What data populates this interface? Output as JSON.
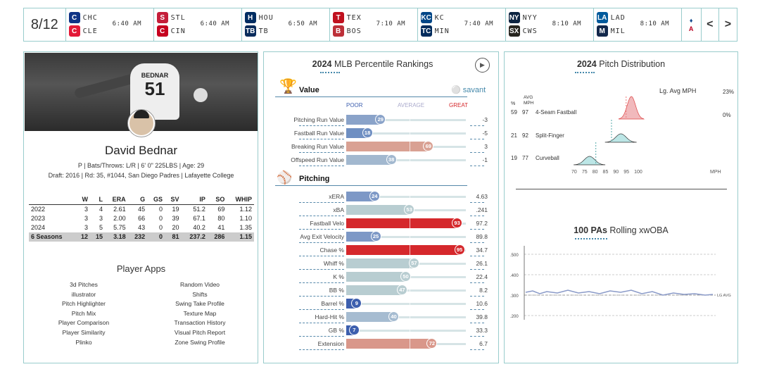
{
  "date": "8/12",
  "games": [
    {
      "away": "CHC",
      "home": "CLE",
      "time": "6:40 AM",
      "c1": "#0e3386",
      "c2": "#e31937",
      "g1": "C",
      "g2": "C"
    },
    {
      "away": "STL",
      "home": "CIN",
      "time": "6:40 AM",
      "c1": "#c41e3a",
      "c2": "#c6011f",
      "g1": "S",
      "g2": "C"
    },
    {
      "away": "HOU",
      "home": "TB",
      "time": "6:50 AM",
      "c1": "#002d62",
      "c2": "#092c5c",
      "g1": "H",
      "g2": "TB"
    },
    {
      "away": "TEX",
      "home": "BOS",
      "time": "7:10 AM",
      "c1": "#c0111f",
      "c2": "#bd3039",
      "g1": "T",
      "g2": "B"
    },
    {
      "away": "KC",
      "home": "MIN",
      "time": "7:40 AM",
      "c1": "#004687",
      "c2": "#002b5c",
      "g1": "KC",
      "g2": "TC"
    },
    {
      "away": "NYY",
      "home": "CWS",
      "time": "8:10 AM",
      "c1": "#0c2340",
      "c2": "#27251f",
      "g1": "NY",
      "g2": "SX"
    },
    {
      "away": "LAD",
      "home": "MIL",
      "time": "8:10 AM",
      "c1": "#005a9c",
      "c2": "#12284b",
      "g1": "LA",
      "g2": "M"
    }
  ],
  "nav": {
    "prev": "<",
    "next": ">",
    "extra_logos": [
      "TOR",
      "LAA"
    ]
  },
  "player": {
    "jersey_name": "BEDNAR",
    "jersey_number": "51",
    "name": "David Bednar",
    "info1": "P | Bats/Throws: L/R | 6' 0\" 225LBS | Age: 29",
    "info2": "Draft: 2016 | Rd: 35, #1044, San Diego Padres | Lafayette College"
  },
  "stats": {
    "headers": [
      "",
      "W",
      "L",
      "ERA",
      "G",
      "GS",
      "SV",
      "IP",
      "SO",
      "WHIP"
    ],
    "rows": [
      [
        "2022",
        "3",
        "4",
        "2.61",
        "45",
        "0",
        "19",
        "51.2",
        "69",
        "1.12"
      ],
      [
        "2023",
        "3",
        "3",
        "2.00",
        "66",
        "0",
        "39",
        "67.1",
        "80",
        "1.10"
      ],
      [
        "2024",
        "3",
        "5",
        "5.75",
        "43",
        "0",
        "20",
        "40.2",
        "41",
        "1.35"
      ]
    ],
    "total": [
      "6 Seasons",
      "12",
      "15",
      "3.18",
      "232",
      "0",
      "81",
      "237.2",
      "286",
      "1.15"
    ]
  },
  "apps": {
    "title": "Player Apps",
    "left": [
      "3d Pitches",
      "illustrator",
      "Pitch Highlighter",
      "Pitch Mix",
      "Player Comparison",
      "Player Similarity",
      "Plinko"
    ],
    "right": [
      "Random Video",
      "Shifts",
      "Swing Take Profile",
      "Texture Map",
      "Transaction History",
      "Visual Pitch Report",
      "Zone Swing Profile"
    ]
  },
  "percentile": {
    "year": "2024",
    "title": "MLB Percentile Rankings",
    "brand": "savant",
    "scale": {
      "poor": "POOR",
      "average": "AVERAGE",
      "great": "GREAT"
    },
    "value_title": "Value",
    "pitching_title": "Pitching",
    "value_rows": [
      {
        "label": "Pitching Run Value",
        "pct": 29,
        "val": "-3",
        "color": "#8aa3c9"
      },
      {
        "label": "Fastball Run Value",
        "pct": 18,
        "val": "-5",
        "color": "#6f8fc2"
      },
      {
        "label": "Breaking Run Value",
        "pct": 69,
        "val": "3",
        "color": "#d9a193"
      },
      {
        "label": "Offspeed Run Value",
        "pct": 38,
        "val": "-1",
        "color": "#a2b8cf"
      }
    ],
    "pitching_rows": [
      {
        "label": "xERA",
        "pct": 24,
        "val": "4.63",
        "color": "#7d98c6"
      },
      {
        "label": "xBA",
        "pct": 53,
        "val": ".241",
        "color": "#b8cdd1"
      },
      {
        "label": "Fastball Velo",
        "pct": 93,
        "val": "97.2",
        "color": "#d5282c"
      },
      {
        "label": "Avg Exit Velocity",
        "pct": 25,
        "val": "89.8",
        "color": "#7d98c6"
      },
      {
        "label": "Chase %",
        "pct": 95,
        "val": "34.7",
        "color": "#d5282c"
      },
      {
        "label": "Whiff %",
        "pct": 57,
        "val": "26.1",
        "color": "#b8cdd1"
      },
      {
        "label": "K %",
        "pct": 50,
        "val": "22.4",
        "color": "#b8cdd1"
      },
      {
        "label": "BB %",
        "pct": 47,
        "val": "8.2",
        "color": "#b8cdd1"
      },
      {
        "label": "Barrel %",
        "pct": 9,
        "val": "10.6",
        "color": "#3d5fae"
      },
      {
        "label": "Hard-Hit %",
        "pct": 40,
        "val": "39.8",
        "color": "#a6bcd1"
      },
      {
        "label": "GB %",
        "pct": 7,
        "val": "33.3",
        "color": "#3d5fae"
      },
      {
        "label": "Extension",
        "pct": 72,
        "val": "6.7",
        "color": "#d9978a"
      }
    ]
  },
  "distribution": {
    "year": "2024",
    "title": "Pitch Distribution",
    "lg_label": "Lg. Avg MPH",
    "pct_hdr": "%",
    "avg_hdr1": "AVG",
    "avg_hdr2": "MPH",
    "max_label": "23%",
    "min_label": "0%",
    "pitches": [
      {
        "pct": "59",
        "mph": "97",
        "name": "4-Seam Fastball",
        "lg": 94.5,
        "color": "#e88a8f"
      },
      {
        "pct": "21",
        "mph": "92",
        "name": "Split-Finger",
        "lg": 87.5,
        "color": "#8fd6d6"
      },
      {
        "pct": "19",
        "mph": "77",
        "name": "Curveball",
        "lg": 80,
        "color": "#8fd6d6"
      }
    ],
    "x_ticks": [
      "70",
      "75",
      "80",
      "85",
      "90",
      "95",
      "100"
    ],
    "x_unit": "MPH"
  },
  "rolling": {
    "title_bold": "100 PAs",
    "title": "Rolling xwOBA",
    "y_ticks": [
      ".500",
      ".400",
      ".300",
      ".200"
    ],
    "lg_label": "LG AVG"
  }
}
